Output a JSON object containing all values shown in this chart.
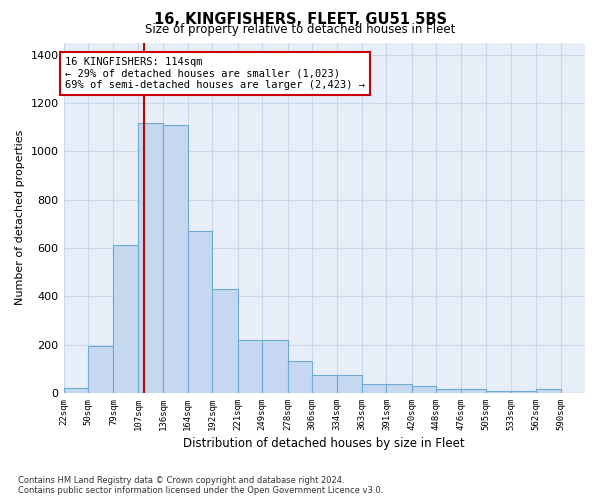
{
  "title": "16, KINGFISHERS, FLEET, GU51 5BS",
  "subtitle": "Size of property relative to detached houses in Fleet",
  "xlabel": "Distribution of detached houses by size in Fleet",
  "ylabel": "Number of detached properties",
  "bar_color": "#c5d8f0",
  "bar_edge_color": "#6aaad4",
  "grid_color": "#c8d8ea",
  "bg_color": "#e8eef8",
  "vline_color": "#cc0000",
  "annotation_text": "16 KINGFISHERS: 114sqm\n← 29% of detached houses are smaller (1,023)\n69% of semi-detached houses are larger (2,423) →",
  "annotation_box_edgecolor": "#cc0000",
  "categories": [
    "22sqm",
    "50sqm",
    "79sqm",
    "107sqm",
    "136sqm",
    "164sqm",
    "192sqm",
    "221sqm",
    "249sqm",
    "278sqm",
    "306sqm",
    "334sqm",
    "363sqm",
    "391sqm",
    "420sqm",
    "448sqm",
    "476sqm",
    "505sqm",
    "533sqm",
    "562sqm",
    "590sqm"
  ],
  "bin_left_edges": [
    22,
    50,
    79,
    107,
    136,
    164,
    192,
    221,
    249,
    278,
    306,
    334,
    363,
    391,
    420,
    448,
    476,
    505,
    533,
    562,
    590
  ],
  "bin_widths": [
    28,
    29,
    28,
    29,
    28,
    28,
    29,
    28,
    29,
    28,
    28,
    29,
    28,
    29,
    28,
    28,
    29,
    28,
    29,
    28,
    28
  ],
  "values": [
    20,
    193,
    614,
    1115,
    1110,
    670,
    430,
    220,
    220,
    133,
    75,
    75,
    35,
    35,
    30,
    18,
    18,
    10,
    10,
    18,
    0
  ],
  "ylim": [
    0,
    1450
  ],
  "yticks": [
    0,
    200,
    400,
    600,
    800,
    1000,
    1200,
    1400
  ],
  "footnote": "Contains HM Land Registry data © Crown copyright and database right 2024.\nContains public sector information licensed under the Open Government Licence v3.0.",
  "property_size_sqm": 114
}
